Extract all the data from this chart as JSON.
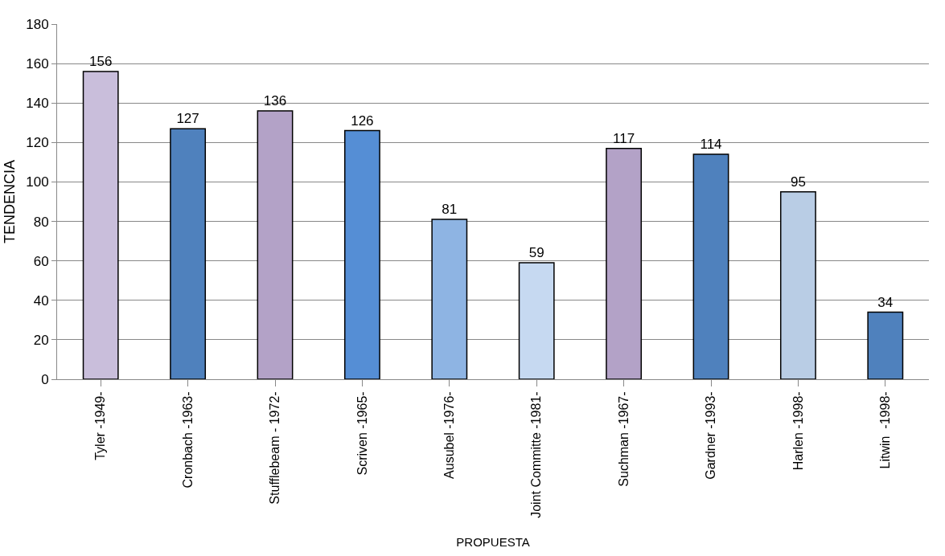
{
  "chart_data": {
    "type": "bar",
    "categories": [
      "Tyler -1949-",
      "Cronbach -1963-",
      "Stufflebeam - 1972-",
      "Scriven -1965-",
      "Ausubel -1976-",
      "Joint Committe -1981-",
      "Suchman -1967-",
      "Gardner -1993-",
      "Harlen -1998-",
      "Litwin  -1998-"
    ],
    "values": [
      156,
      127,
      136,
      126,
      81,
      59,
      117,
      114,
      95,
      34
    ],
    "colors": [
      "#c9bedb",
      "#4f81bd",
      "#b3a2c7",
      "#558ed5",
      "#8eb4e3",
      "#c6d9f1",
      "#b3a2c7",
      "#4f81bd",
      "#b9cde5",
      "#4f81bd"
    ],
    "xlabel": "PROPUESTA",
    "ylabel": "TENDENCIA",
    "ylim": [
      0,
      180
    ],
    "yticks": [
      0,
      20,
      40,
      60,
      80,
      100,
      120,
      140,
      160,
      180
    ],
    "grid": "y",
    "data_labels": true
  }
}
